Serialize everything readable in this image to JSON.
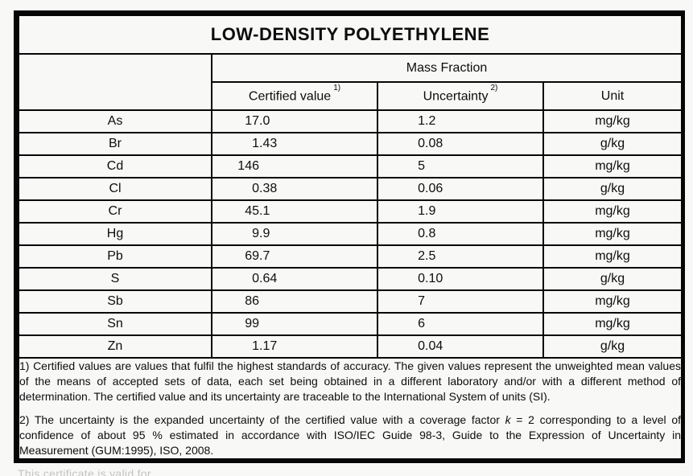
{
  "title": "LOW-DENSITY POLYETHYLENE",
  "table": {
    "group_header": "Mass Fraction",
    "columns": {
      "element": "",
      "certified_value": "Certified value",
      "certified_value_sup": "1)",
      "uncertainty": "Uncertainty",
      "uncertainty_sup": "2)",
      "unit": "Unit"
    },
    "rows": [
      {
        "element": "As",
        "certified_value": "17.0",
        "uncertainty": "1.2",
        "unit": "mg/kg"
      },
      {
        "element": "Br",
        "certified_value": "1.43",
        "uncertainty": "0.08",
        "unit": "g/kg"
      },
      {
        "element": "Cd",
        "certified_value": "146",
        "uncertainty": "5",
        "unit": "mg/kg"
      },
      {
        "element": "Cl",
        "certified_value": "0.38",
        "uncertainty": "0.06",
        "unit": "g/kg"
      },
      {
        "element": "Cr",
        "certified_value": "45.1",
        "uncertainty": "1.9",
        "unit": "mg/kg"
      },
      {
        "element": "Hg",
        "certified_value": "9.9",
        "uncertainty": "0.8",
        "unit": "mg/kg"
      },
      {
        "element": "Pb",
        "certified_value": "69.7",
        "uncertainty": "2.5",
        "unit": "mg/kg"
      },
      {
        "element": "S",
        "certified_value": "0.64",
        "uncertainty": "0.10",
        "unit": "g/kg"
      },
      {
        "element": "Sb",
        "certified_value": "86",
        "uncertainty": "7",
        "unit": "mg/kg"
      },
      {
        "element": "Sn",
        "certified_value": "99",
        "uncertainty": "6",
        "unit": "mg/kg"
      },
      {
        "element": "Zn",
        "certified_value": "1.17",
        "uncertainty": "0.04",
        "unit": "g/kg"
      }
    ]
  },
  "footnotes": {
    "note1": "1) Certified values are values that fulfil the highest standards of accuracy. The given values represent the unweighted mean values of the means of accepted sets of data, each set being obtained in a different laboratory and/or with a different method of determination. The certified value and its uncertainty are traceable to the International System of units (SI).",
    "note2_before_k": "2) The uncertainty is the expanded uncertainty of the certified value with a coverage factor ",
    "note2_k": "k",
    "note2_after_k": " = 2 corresponding to a level of confidence of about 95 % estimated in accordance with ISO/IEC Guide 98-3, Guide to the Expression of Uncertainty in Measurement (GUM:1995), ISO, 2008."
  },
  "clipped_footer": "This certificate is valid for …"
}
